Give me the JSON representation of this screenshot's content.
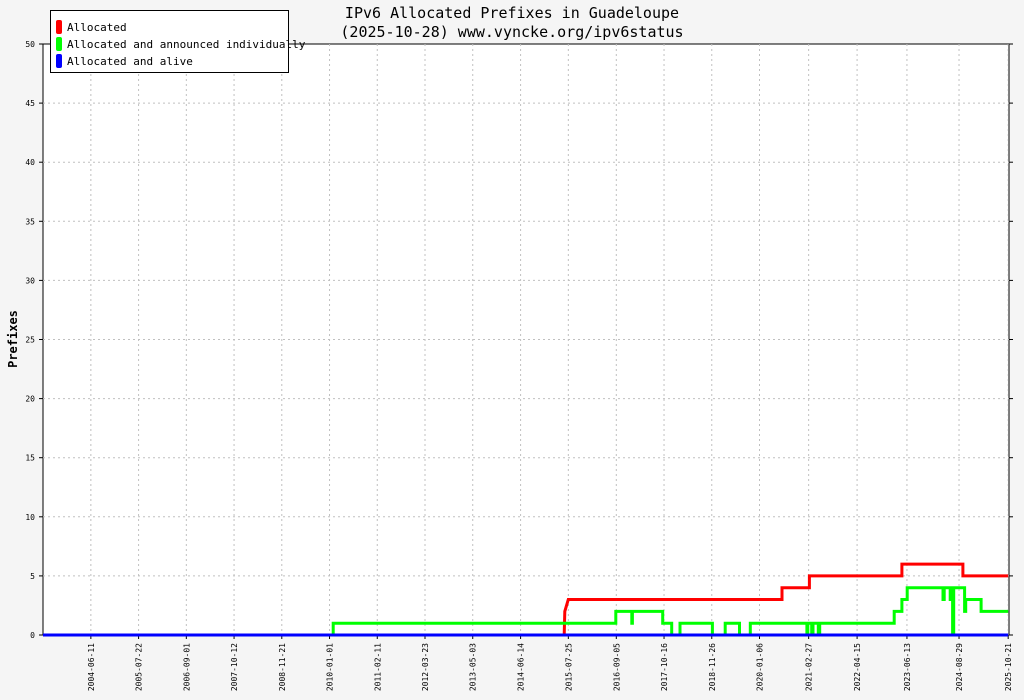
{
  "title_line1": "IPv6 Allocated Prefixes in Guadeloupe",
  "title_line2": "(2025-10-28) www.vyncke.org/ipv6status",
  "chart_data": {
    "type": "line",
    "title": "IPv6 Allocated Prefixes in Guadeloupe (2025-10-28) www.vyncke.org/ipv6status",
    "ylabel": "Prefixes",
    "xlabel": "",
    "ylim": [
      0,
      50
    ],
    "y_ticks": [
      0,
      5,
      10,
      15,
      20,
      25,
      30,
      35,
      40,
      45,
      50
    ],
    "x_range": [
      "2003-05-01",
      "2025-10-28"
    ],
    "x_ticks": [
      "2004-06-11",
      "2005-07-22",
      "2006-09-01",
      "2007-10-12",
      "2008-11-21",
      "2010-01-01",
      "2011-02-11",
      "2012-03-23",
      "2013-05-03",
      "2014-06-14",
      "2015-07-25",
      "2016-09-05",
      "2017-10-16",
      "2018-11-26",
      "2020-01-06",
      "2021-02-27",
      "2022-04-15",
      "2023-06-13",
      "2024-08-29",
      "2025-10-21"
    ],
    "grid": true,
    "legend_position": "top-left",
    "series": [
      {
        "name": "Allocated",
        "color": "#ff0000",
        "points": [
          [
            "2015-06-20",
            0
          ],
          [
            "2015-06-25",
            2
          ],
          [
            "2015-07-25",
            3
          ],
          [
            "2020-07-15",
            3
          ],
          [
            "2020-07-15",
            4
          ],
          [
            "2021-03-05",
            4
          ],
          [
            "2021-03-05",
            5
          ],
          [
            "2023-05-01",
            5
          ],
          [
            "2023-05-01",
            6
          ],
          [
            "2024-10-01",
            6
          ],
          [
            "2024-10-01",
            5
          ],
          [
            "2025-10-21",
            5
          ]
        ]
      },
      {
        "name": "Allocated and announced individually",
        "color": "#00ff00",
        "points": [
          [
            "2003-05-01",
            0
          ],
          [
            "2010-02-01",
            0
          ],
          [
            "2010-02-01",
            1
          ],
          [
            "2016-09-01",
            1
          ],
          [
            "2016-09-01",
            2
          ],
          [
            "2017-01-15",
            2
          ],
          [
            "2017-01-15",
            1
          ],
          [
            "2017-01-20",
            1
          ],
          [
            "2017-01-20",
            2
          ],
          [
            "2017-10-05",
            2
          ],
          [
            "2017-10-05",
            1
          ],
          [
            "2017-12-20",
            1
          ],
          [
            "2017-12-20",
            0
          ],
          [
            "2018-03-01",
            0
          ],
          [
            "2018-03-01",
            1
          ],
          [
            "2018-12-01",
            1
          ],
          [
            "2018-12-01",
            0
          ],
          [
            "2019-03-20",
            0
          ],
          [
            "2019-03-20",
            1
          ],
          [
            "2019-07-20",
            1
          ],
          [
            "2019-07-20",
            0
          ],
          [
            "2019-10-20",
            0
          ],
          [
            "2019-10-20",
            1
          ],
          [
            "2021-02-12",
            1
          ],
          [
            "2021-02-12",
            0
          ],
          [
            "2021-02-20",
            0
          ],
          [
            "2021-02-20",
            1
          ],
          [
            "2021-03-25",
            1
          ],
          [
            "2021-03-25",
            0
          ],
          [
            "2021-04-05",
            0
          ],
          [
            "2021-04-05",
            1
          ],
          [
            "2021-05-20",
            1
          ],
          [
            "2021-05-20",
            0
          ],
          [
            "2021-06-01",
            0
          ],
          [
            "2021-06-01",
            1
          ],
          [
            "2023-02-25",
            1
          ],
          [
            "2023-02-25",
            2
          ],
          [
            "2023-05-01",
            2
          ],
          [
            "2023-05-01",
            3
          ],
          [
            "2023-06-15",
            3
          ],
          [
            "2023-06-15",
            4
          ],
          [
            "2024-04-15",
            4
          ],
          [
            "2024-04-15",
            3
          ],
          [
            "2024-04-25",
            3
          ],
          [
            "2024-04-25",
            4
          ],
          [
            "2024-06-15",
            4
          ],
          [
            "2024-06-15",
            3
          ],
          [
            "2024-06-25",
            3
          ],
          [
            "2024-06-25",
            4
          ],
          [
            "2024-07-05",
            4
          ],
          [
            "2024-07-05",
            0
          ],
          [
            "2024-07-15",
            0
          ],
          [
            "2024-07-15",
            4
          ],
          [
            "2024-10-15",
            4
          ],
          [
            "2024-10-15",
            2
          ],
          [
            "2024-10-25",
            2
          ],
          [
            "2024-10-25",
            3
          ],
          [
            "2025-03-05",
            3
          ],
          [
            "2025-03-05",
            2
          ],
          [
            "2025-10-21",
            2
          ]
        ]
      },
      {
        "name": "Allocated and alive",
        "color": "#0000ff",
        "points": [
          [
            "2003-05-01",
            0
          ],
          [
            "2025-10-21",
            0
          ]
        ]
      }
    ]
  },
  "colors": {
    "background": "#f5f5f5",
    "plot_background": "#ffffff",
    "grid": "#c0c0c0"
  }
}
